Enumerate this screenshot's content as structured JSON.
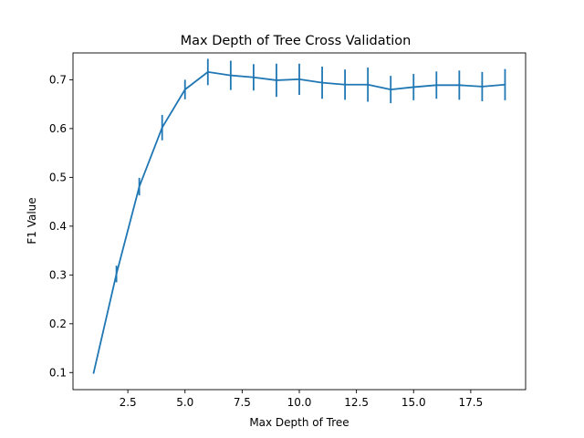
{
  "chart_data": {
    "type": "line",
    "title": "Max Depth of Tree Cross Validation",
    "xlabel": "Max Depth of Tree",
    "ylabel": "F1 Value",
    "xlim": [
      0.1,
      19.9
    ],
    "ylim": [
      0.065,
      0.755
    ],
    "xticks": [
      2.5,
      5.0,
      7.5,
      10.0,
      12.5,
      15.0,
      17.5
    ],
    "xtick_labels": [
      "2.5",
      "5.0",
      "7.5",
      "10.0",
      "12.5",
      "15.0",
      "17.5"
    ],
    "yticks": [
      0.1,
      0.2,
      0.3,
      0.4,
      0.5,
      0.6,
      0.7
    ],
    "ytick_labels": [
      "0.1",
      "0.2",
      "0.3",
      "0.4",
      "0.5",
      "0.6",
      "0.7"
    ],
    "grid": false,
    "color": "#1f77b4",
    "series": [
      {
        "x": [
          1,
          2,
          3,
          4,
          5,
          6,
          7,
          8,
          9,
          10,
          11,
          12,
          13,
          14,
          15,
          16,
          17,
          18,
          19
        ],
        "y": [
          0.099,
          0.302,
          0.481,
          0.602,
          0.68,
          0.716,
          0.709,
          0.705,
          0.699,
          0.701,
          0.694,
          0.69,
          0.69,
          0.68,
          0.685,
          0.689,
          0.689,
          0.686,
          0.69
        ],
        "err": [
          0.0,
          0.017,
          0.018,
          0.026,
          0.02,
          0.027,
          0.03,
          0.027,
          0.034,
          0.032,
          0.033,
          0.031,
          0.035,
          0.028,
          0.027,
          0.028,
          0.03,
          0.03,
          0.032
        ]
      }
    ]
  }
}
